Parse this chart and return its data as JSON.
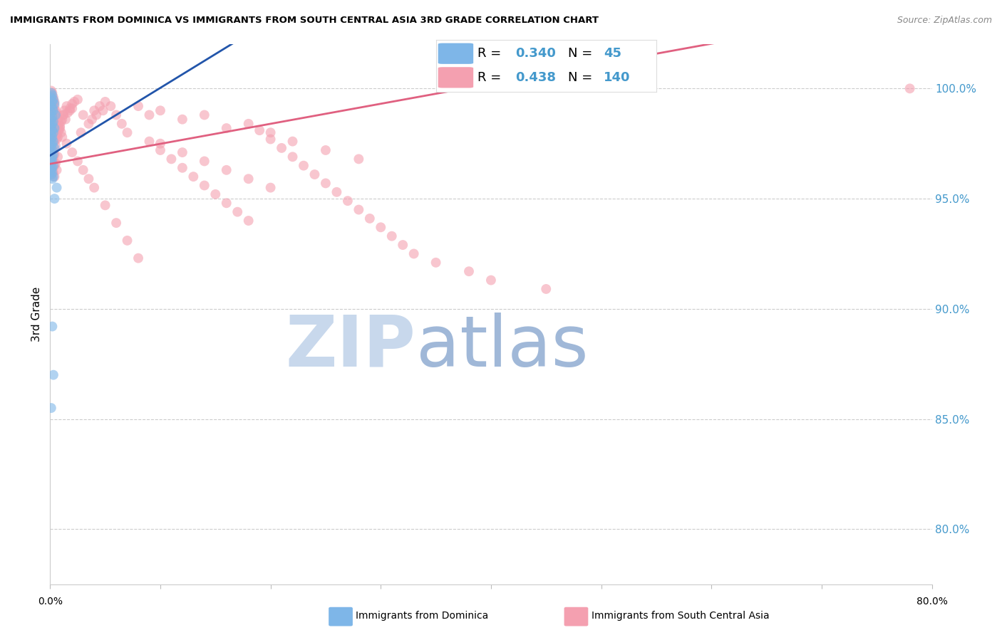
{
  "title": "IMMIGRANTS FROM DOMINICA VS IMMIGRANTS FROM SOUTH CENTRAL ASIA 3RD GRADE CORRELATION CHART",
  "source": "Source: ZipAtlas.com",
  "ylabel": "3rd Grade",
  "ytick_labels": [
    "100.0%",
    "95.0%",
    "90.0%",
    "85.0%",
    "80.0%"
  ],
  "ytick_positions": [
    1.0,
    0.95,
    0.9,
    0.85,
    0.8
  ],
  "xlim": [
    0.0,
    0.8
  ],
  "ylim": [
    0.775,
    1.02
  ],
  "legend_blue_R": "0.340",
  "legend_blue_N": "45",
  "legend_pink_R": "0.438",
  "legend_pink_N": "140",
  "blue_color": "#7EB6E8",
  "pink_color": "#F4A0B0",
  "blue_line_color": "#2255AA",
  "pink_line_color": "#E06080",
  "watermark_ZIP_color": "#C8D8EC",
  "watermark_atlas_color": "#A0B8D8",
  "grid_color": "#CCCCCC",
  "background_color": "#FFFFFF",
  "blue_scatter_x": [
    0.001,
    0.002,
    0.001,
    0.003,
    0.002,
    0.004,
    0.001,
    0.002,
    0.003,
    0.001,
    0.005,
    0.002,
    0.001,
    0.003,
    0.002,
    0.001,
    0.004,
    0.002,
    0.003,
    0.001,
    0.002,
    0.001,
    0.003,
    0.002,
    0.001,
    0.004,
    0.002,
    0.001,
    0.003,
    0.002,
    0.001,
    0.002,
    0.001,
    0.003,
    0.002,
    0.001,
    0.002,
    0.001,
    0.003,
    0.002,
    0.006,
    0.004,
    0.002,
    0.003,
    0.001
  ],
  "blue_scatter_y": [
    0.998,
    0.997,
    0.996,
    0.995,
    0.994,
    0.993,
    0.992,
    0.991,
    0.99,
    0.989,
    0.988,
    0.987,
    0.986,
    0.985,
    0.984,
    0.983,
    0.982,
    0.981,
    0.98,
    0.979,
    0.978,
    0.977,
    0.976,
    0.975,
    0.974,
    0.973,
    0.972,
    0.971,
    0.97,
    0.969,
    0.968,
    0.967,
    0.966,
    0.965,
    0.964,
    0.963,
    0.962,
    0.961,
    0.96,
    0.959,
    0.955,
    0.95,
    0.892,
    0.87,
    0.855
  ],
  "pink_scatter_x": [
    0.001,
    0.002,
    0.001,
    0.003,
    0.002,
    0.004,
    0.001,
    0.002,
    0.003,
    0.001,
    0.005,
    0.002,
    0.001,
    0.003,
    0.002,
    0.001,
    0.004,
    0.002,
    0.003,
    0.001,
    0.006,
    0.003,
    0.002,
    0.004,
    0.001,
    0.005,
    0.003,
    0.002,
    0.001,
    0.004,
    0.007,
    0.003,
    0.002,
    0.005,
    0.004,
    0.001,
    0.006,
    0.003,
    0.002,
    0.004,
    0.01,
    0.008,
    0.006,
    0.012,
    0.009,
    0.007,
    0.011,
    0.008,
    0.006,
    0.013,
    0.015,
    0.012,
    0.018,
    0.014,
    0.02,
    0.016,
    0.022,
    0.018,
    0.025,
    0.02,
    0.03,
    0.035,
    0.028,
    0.04,
    0.038,
    0.045,
    0.042,
    0.05,
    0.048,
    0.055,
    0.06,
    0.065,
    0.07,
    0.08,
    0.09,
    0.1,
    0.12,
    0.14,
    0.16,
    0.18,
    0.2,
    0.22,
    0.25,
    0.28,
    0.1,
    0.12,
    0.14,
    0.16,
    0.18,
    0.2,
    0.015,
    0.02,
    0.025,
    0.03,
    0.035,
    0.04,
    0.05,
    0.06,
    0.07,
    0.08,
    0.09,
    0.1,
    0.11,
    0.12,
    0.13,
    0.14,
    0.15,
    0.16,
    0.17,
    0.18,
    0.19,
    0.2,
    0.21,
    0.22,
    0.23,
    0.24,
    0.25,
    0.26,
    0.27,
    0.28,
    0.29,
    0.3,
    0.31,
    0.32,
    0.33,
    0.35,
    0.38,
    0.4,
    0.45,
    0.78,
    0.002,
    0.003,
    0.004,
    0.005,
    0.006,
    0.007,
    0.008,
    0.009,
    0.01,
    0.011
  ],
  "pink_scatter_y": [
    0.999,
    0.998,
    0.997,
    0.996,
    0.995,
    0.994,
    0.993,
    0.992,
    0.991,
    0.99,
    0.989,
    0.988,
    0.987,
    0.986,
    0.985,
    0.984,
    0.983,
    0.982,
    0.981,
    0.98,
    0.979,
    0.978,
    0.977,
    0.976,
    0.975,
    0.974,
    0.973,
    0.972,
    0.971,
    0.97,
    0.969,
    0.968,
    0.967,
    0.966,
    0.965,
    0.964,
    0.963,
    0.962,
    0.961,
    0.96,
    0.985,
    0.982,
    0.979,
    0.988,
    0.983,
    0.978,
    0.986,
    0.981,
    0.977,
    0.99,
    0.992,
    0.988,
    0.991,
    0.986,
    0.993,
    0.989,
    0.994,
    0.99,
    0.995,
    0.991,
    0.988,
    0.984,
    0.98,
    0.99,
    0.986,
    0.992,
    0.988,
    0.994,
    0.99,
    0.992,
    0.988,
    0.984,
    0.98,
    0.992,
    0.988,
    0.99,
    0.986,
    0.988,
    0.982,
    0.984,
    0.98,
    0.976,
    0.972,
    0.968,
    0.975,
    0.971,
    0.967,
    0.963,
    0.959,
    0.955,
    0.975,
    0.971,
    0.967,
    0.963,
    0.959,
    0.955,
    0.947,
    0.939,
    0.931,
    0.923,
    0.976,
    0.972,
    0.968,
    0.964,
    0.96,
    0.956,
    0.952,
    0.948,
    0.944,
    0.94,
    0.981,
    0.977,
    0.973,
    0.969,
    0.965,
    0.961,
    0.957,
    0.953,
    0.949,
    0.945,
    0.941,
    0.937,
    0.933,
    0.929,
    0.925,
    0.921,
    0.917,
    0.913,
    0.909,
    1.0,
    0.996,
    0.994,
    0.992,
    0.99,
    0.988,
    0.986,
    0.984,
    0.982,
    0.98,
    0.978
  ]
}
